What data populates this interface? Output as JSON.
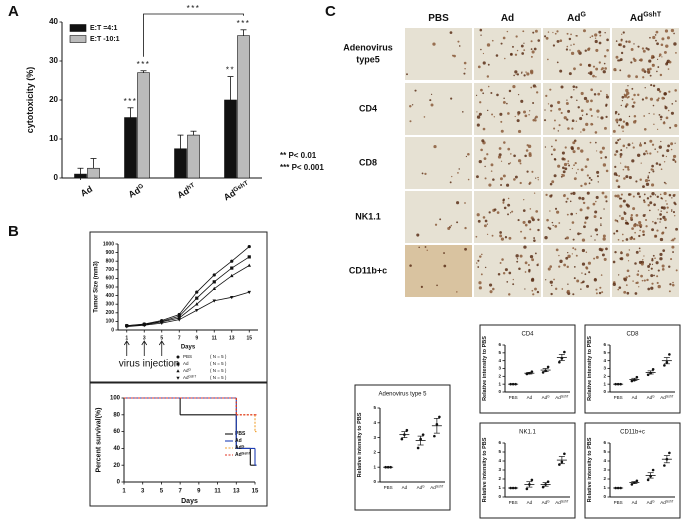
{
  "panel_labels": [
    "A",
    "B",
    "C"
  ],
  "significance_notes": [
    "** P< 0.01",
    "*** P< 0.001"
  ],
  "chart_data": [
    {
      "type": "bar",
      "ylabel": "cytotoxicity (%)",
      "categories": [
        "Ad",
        "Ad",
        "Ad",
        "Ad"
      ],
      "category_sup": [
        null,
        "G",
        "hT",
        "GshT"
      ],
      "series": [
        {
          "name": "E:T =4:1",
          "color": "#111111",
          "values": [
            1,
            15.5,
            7.5,
            20
          ],
          "errors": [
            1.5,
            2.5,
            3.5,
            6
          ],
          "stars": [
            null,
            "***",
            null,
            "**"
          ]
        },
        {
          "name": "E:T -10:1",
          "color": "#bbbbbb",
          "values": [
            2.5,
            27,
            11,
            36.5
          ],
          "errors": [
            2.5,
            0.5,
            1,
            1.5
          ],
          "stars": [
            null,
            "***",
            null,
            "***"
          ]
        }
      ],
      "bracket_label": "***",
      "ylim": [
        0,
        40
      ],
      "yticks": [
        0,
        10,
        20,
        30,
        40
      ]
    },
    {
      "type": "line",
      "ylabel": "Tumor Size (mm3)",
      "xlabel": "Days",
      "x": [
        1,
        3,
        5,
        7,
        9,
        11,
        13,
        15
      ],
      "series": [
        {
          "name": "PBS",
          "name_sup": null,
          "note": "( N = 5 )",
          "color": "#111111",
          "marker": "circle",
          "values": [
            50,
            70,
            110,
            180,
            440,
            640,
            800,
            970
          ]
        },
        {
          "name": "Ad",
          "name_sup": null,
          "note": "( N = 5 )",
          "color": "#111111",
          "marker": "square",
          "values": [
            50,
            65,
            100,
            160,
            370,
            560,
            720,
            850
          ]
        },
        {
          "name": "Ad",
          "name_sup": "G",
          "note": "( N = 5 )",
          "color": "#111111",
          "marker": "triangle-up",
          "values": [
            50,
            60,
            95,
            140,
            300,
            480,
            630,
            750
          ]
        },
        {
          "name": "Ad",
          "name_sup": "GshT",
          "note": "( N = 5 )",
          "color": "#111111",
          "marker": "triangle-down",
          "values": [
            40,
            55,
            80,
            120,
            230,
            340,
            380,
            440
          ]
        }
      ],
      "annotation": {
        "text": "virus injection",
        "x": [
          1,
          3,
          5
        ]
      },
      "xlim": [
        0,
        16
      ],
      "xticks": [
        1,
        3,
        5,
        7,
        9,
        11,
        13,
        15
      ],
      "ylim": [
        0,
        1000
      ],
      "yticks": [
        0,
        100,
        200,
        300,
        400,
        500,
        600,
        700,
        800,
        900,
        1000
      ]
    },
    {
      "type": "step",
      "ylabel": "Percent survival(%)",
      "xlabel": "Days",
      "series": [
        {
          "name": "PBS",
          "name_sup": null,
          "color": "#111111",
          "dash": false,
          "x": [
            1,
            7,
            13,
            14.5,
            15
          ],
          "values": [
            100,
            80,
            40,
            20,
            20
          ]
        },
        {
          "name": "Ad",
          "name_sup": null,
          "color": "#1f3fb5",
          "dash": false,
          "x": [
            1,
            13,
            15
          ],
          "values": [
            100,
            40,
            20
          ]
        },
        {
          "name": "Ad",
          "name_sup": "G",
          "color": "#f0a030",
          "dash": true,
          "x": [
            1,
            13,
            15
          ],
          "values": [
            100,
            80,
            60
          ]
        },
        {
          "name": "Ad",
          "name_sup": "GshT",
          "color": "#e03020",
          "dash": true,
          "x": [
            1,
            13,
            15
          ],
          "values": [
            100,
            80,
            80
          ]
        }
      ],
      "xlim": [
        1,
        15
      ],
      "xticks": [
        1,
        3,
        5,
        7,
        9,
        11,
        13,
        15
      ],
      "ylim": [
        0,
        100
      ],
      "yticks": [
        0,
        20,
        40,
        60,
        80,
        100
      ]
    },
    {
      "type": "dot",
      "title": "Adenovirus type 5",
      "ylabel": "Relative intensity to PBS",
      "categories": [
        "PBS",
        "Ad",
        "Ad",
        "Ad"
      ],
      "category_sup": [
        null,
        null,
        "G",
        "GshT"
      ],
      "values": [
        1,
        3.2,
        2.8,
        3.8
      ],
      "errors": [
        0,
        0.2,
        0.3,
        0.5
      ],
      "points": [
        [
          1,
          1,
          1
        ],
        [
          2.9,
          3.2,
          3.5
        ],
        [
          2.3,
          2.9,
          3.2
        ],
        [
          3.1,
          3.9,
          4.4
        ]
      ],
      "ylim": [
        0,
        5
      ],
      "yticks": [
        0,
        1,
        2,
        3,
        4,
        5
      ]
    },
    {
      "type": "dot",
      "title": "CD4",
      "ylabel": "Relative intensity to PBS",
      "categories": [
        "PBS",
        "Ad",
        "Ad",
        "Ad"
      ],
      "category_sup": [
        null,
        null,
        "G",
        "GshT"
      ],
      "values": [
        1,
        2.4,
        2.8,
        4.4
      ],
      "errors": [
        0,
        0.1,
        0.2,
        0.4
      ],
      "points": [
        [
          1,
          1,
          1
        ],
        [
          2.3,
          2.4,
          2.6
        ],
        [
          2.5,
          2.7,
          3.2
        ],
        [
          3.8,
          4.3,
          5.1
        ]
      ],
      "ylim": [
        0,
        6
      ],
      "yticks": [
        0,
        1,
        2,
        3,
        4,
        5,
        6
      ]
    },
    {
      "type": "dot",
      "title": "CD8",
      "ylabel": "Relative intensity to PBS",
      "categories": [
        "PBS",
        "Ad",
        "Ad",
        "Ad"
      ],
      "category_sup": [
        null,
        null,
        "G",
        "GshT"
      ],
      "values": [
        1,
        1.6,
        2.5,
        4.0
      ],
      "errors": [
        0,
        0.15,
        0.2,
        0.4
      ],
      "points": [
        [
          1,
          1,
          1
        ],
        [
          1.4,
          1.5,
          1.9
        ],
        [
          2.2,
          2.4,
          2.9
        ],
        [
          3.4,
          3.8,
          4.8
        ]
      ],
      "ylim": [
        0,
        6
      ],
      "yticks": [
        0,
        1,
        2,
        3,
        4,
        5,
        6
      ]
    },
    {
      "type": "dot",
      "title": "NK1.1",
      "ylabel": "Relative intensity to PBS",
      "categories": [
        "PBS",
        "Ad",
        "Ad",
        "Ad"
      ],
      "category_sup": [
        null,
        null,
        "G",
        "GshT"
      ],
      "values": [
        1,
        1.4,
        1.4,
        4.1
      ],
      "errors": [
        0,
        0.3,
        0.2,
        0.4
      ],
      "points": [
        [
          1,
          1,
          1
        ],
        [
          0.9,
          1.4,
          1.9
        ],
        [
          1.1,
          1.4,
          1.7
        ],
        [
          3.6,
          3.9,
          4.8
        ]
      ],
      "ylim": [
        0,
        6
      ],
      "yticks": [
        0,
        1,
        2,
        3,
        4,
        5,
        6
      ]
    },
    {
      "type": "dot",
      "title": "CD11b+c",
      "ylabel": "Relative intensity to PBS",
      "categories": [
        "PBS",
        "Ad",
        "Ad",
        "Ad"
      ],
      "category_sup": [
        null,
        null,
        "G",
        "GshT"
      ],
      "values": [
        1,
        1.6,
        2.4,
        4.2
      ],
      "errors": [
        0,
        0.1,
        0.3,
        0.4
      ],
      "points": [
        [
          1,
          1,
          1
        ],
        [
          1.4,
          1.6,
          1.8
        ],
        [
          1.9,
          2.3,
          3.0
        ],
        [
          3.5,
          4.2,
          4.9
        ]
      ],
      "ylim": [
        0,
        6
      ],
      "yticks": [
        0,
        1,
        2,
        3,
        4,
        5,
        6
      ]
    }
  ],
  "image_grid": {
    "columns": [
      "PBS",
      "Ad",
      "Ad",
      "Ad"
    ],
    "column_sup": [
      null,
      null,
      "G",
      "GshT"
    ],
    "rows": [
      [
        "Adenovirus",
        "type5"
      ],
      [
        "CD4"
      ],
      [
        "CD8"
      ],
      [
        "NK1.1"
      ],
      [
        "CD11b+c"
      ]
    ]
  }
}
